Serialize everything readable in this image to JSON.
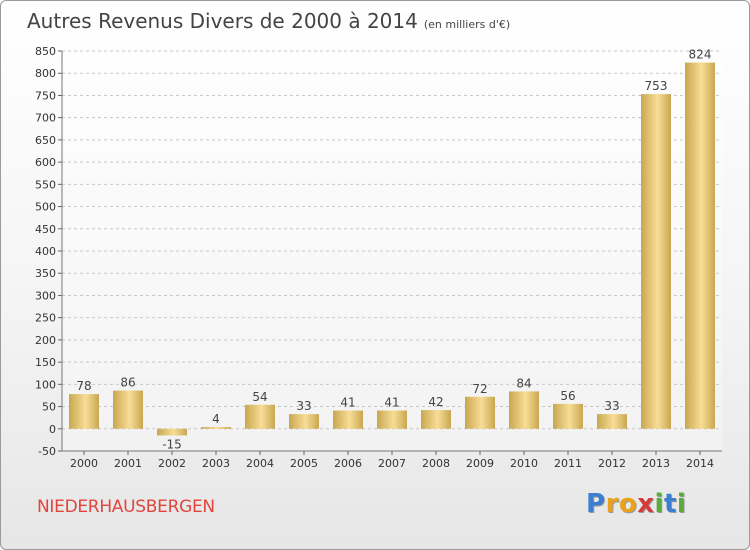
{
  "title": "Autres Revenus Divers de 2000 à 2014",
  "subtitle": "(en milliers d'€)",
  "commune": "NIEDERHAUSBERGEN",
  "logo": {
    "text": "Proxiti",
    "letters": [
      {
        "ch": "P",
        "color": "#3a7fd0"
      },
      {
        "ch": "r",
        "color": "#e9a21c"
      },
      {
        "ch": "o",
        "color": "#e9a21c"
      },
      {
        "ch": "x",
        "color": "#d63b3b"
      },
      {
        "ch": "i",
        "color": "#5aaa3c"
      },
      {
        "ch": "t",
        "color": "#3a7fd0"
      },
      {
        "ch": "i",
        "color": "#5aaa3c"
      }
    ]
  },
  "colors": {
    "bar_light": "#f7dd95",
    "bar_dark": "#c8a750",
    "grid": "#c8c8c8",
    "axis_text": "#333333",
    "title_color": "#444444",
    "commune_color": "#e0453e"
  },
  "chart_data": {
    "type": "bar",
    "categories": [
      "2000",
      "2001",
      "2002",
      "2003",
      "2004",
      "2005",
      "2006",
      "2007",
      "2008",
      "2009",
      "2010",
      "2011",
      "2012",
      "2013",
      "2014"
    ],
    "values": [
      78,
      86,
      -15,
      4,
      54,
      33,
      41,
      41,
      42,
      72,
      84,
      56,
      33,
      753,
      824
    ],
    "ylim": [
      -50,
      850
    ],
    "ytick_step": 50,
    "grid": "horizontal dashed",
    "legend": "none"
  }
}
